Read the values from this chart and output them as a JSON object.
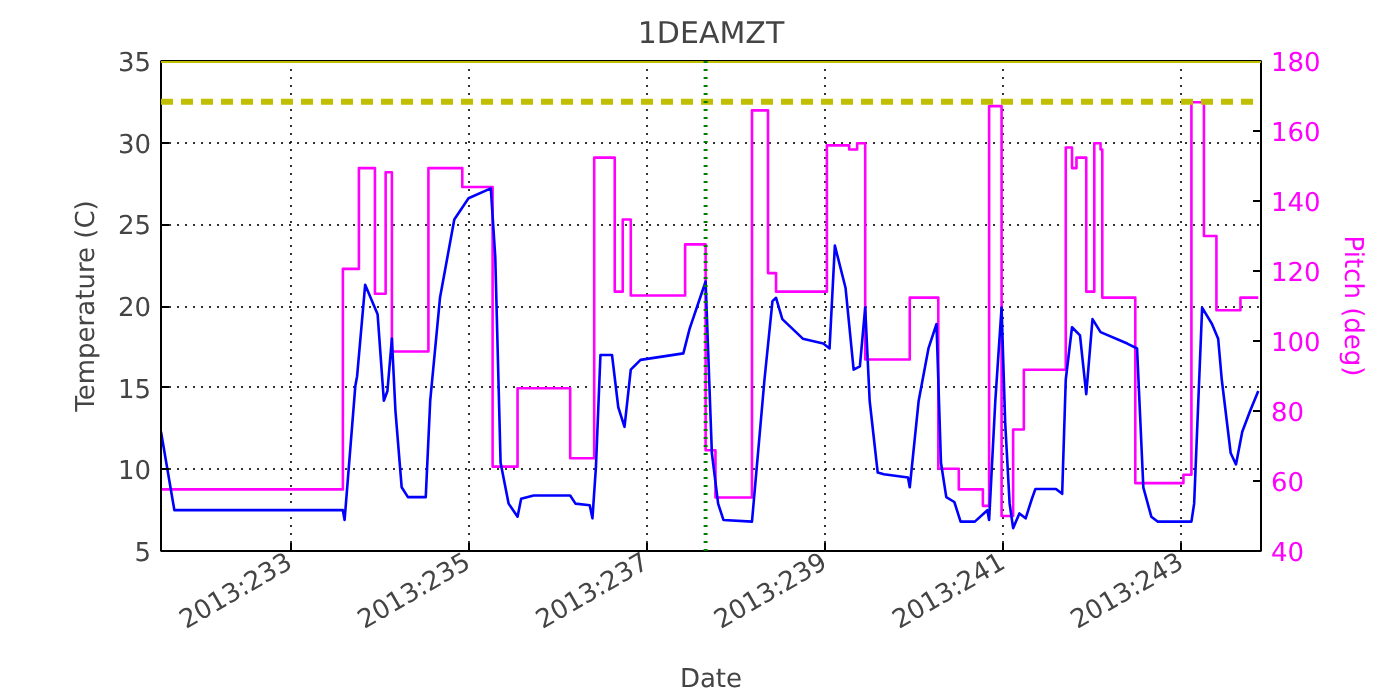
{
  "chart_data": {
    "type": "line",
    "title": "1DEAMZT",
    "xlabel": "Date",
    "ylabel": "Temperature (C)",
    "y2label": "Pitch (deg)",
    "xlim": [
      "2013-08-19T13:12",
      "2013-08-31T21:22"
    ],
    "ylim": [
      5,
      35
    ],
    "y2lim": [
      40,
      180
    ],
    "xticks": [
      {
        "value": "2013-08-21",
        "label": "2013:233"
      },
      {
        "value": "2013-08-23",
        "label": "2013:235"
      },
      {
        "value": "2013-08-25",
        "label": "2013:237"
      },
      {
        "value": "2013-08-27",
        "label": "2013:239"
      },
      {
        "value": "2013-08-29",
        "label": "2013:241"
      },
      {
        "value": "2013-08-31",
        "label": "2013:243"
      }
    ],
    "yticks": [
      5,
      10,
      15,
      20,
      25,
      30,
      35
    ],
    "y2ticks": [
      40,
      60,
      80,
      100,
      120,
      140,
      160,
      180
    ],
    "grid": true,
    "series": [
      {
        "color": "#0000ff",
        "x": [
          "2013-08-19T13:12",
          "2013-08-19T16:48",
          "2013-08-21T14:10",
          "2013-08-21T14:38",
          "2013-08-21T17:31",
          "2013-08-21T18:00",
          "2013-08-21T20:10",
          "2013-08-21T23:31",
          "2013-08-22T01:12",
          "2013-08-22T02:10",
          "2013-08-22T03:22",
          "2013-08-22T04:19",
          "2013-08-22T06:00",
          "2013-08-22T07:41",
          "2013-08-22T12:29",
          "2013-08-22T13:41",
          "2013-08-22T16:19",
          "2013-08-22T20:10",
          "2013-08-23T00:00",
          "2013-08-23T06:00",
          "2013-08-23T07:12",
          "2013-08-23T08:38",
          "2013-08-23T10:48",
          "2013-08-23T13:12",
          "2013-08-23T14:10",
          "2013-08-23T17:31",
          "2013-08-24T03:22",
          "2013-08-24T04:48",
          "2013-08-24T08:38",
          "2013-08-24T09:22",
          "2013-08-24T10:19",
          "2013-08-24T11:31",
          "2013-08-24T14:38",
          "2013-08-24T16:19",
          "2013-08-24T18:00",
          "2013-08-24T19:41",
          "2013-08-24T22:19",
          "2013-08-25T09:50",
          "2013-08-25T11:31",
          "2013-08-25T15:50",
          "2013-08-25T17:31",
          "2013-08-25T19:12",
          "2013-08-25T20:38",
          "2013-08-26T04:19",
          "2013-08-26T07:41",
          "2013-08-26T09:50",
          "2013-08-26T10:48",
          "2013-08-26T12:29",
          "2013-08-26T18:00",
          "2013-08-26T23:31",
          "2013-08-27T01:12",
          "2013-08-27T02:38",
          "2013-08-27T05:31",
          "2013-08-27T07:41",
          "2013-08-27T09:22",
          "2013-08-27T10:48",
          "2013-08-27T12:00",
          "2013-08-27T14:10",
          "2013-08-27T15:50",
          "2013-08-27T22:19",
          "2013-08-27T22:48",
          "2013-08-28T01:12",
          "2013-08-28T03:50",
          "2013-08-28T06:00",
          "2013-08-28T07:12",
          "2013-08-28T08:38",
          "2013-08-28T10:48",
          "2013-08-28T12:29",
          "2013-08-28T16:19",
          "2013-08-28T19:41",
          "2013-08-28T20:10",
          "2013-08-28T21:50",
          "2013-08-28T23:31",
          "2013-08-29T00:29",
          "2013-08-29T01:41",
          "2013-08-29T02:38",
          "2013-08-29T04:19",
          "2013-08-29T06:00",
          "2013-08-29T07:41",
          "2013-08-29T08:38",
          "2013-08-29T14:10",
          "2013-08-29T15:50",
          "2013-08-29T16:48",
          "2013-08-29T18:29",
          "2013-08-29T20:38",
          "2013-08-29T22:19",
          "2013-08-30T00:00",
          "2013-08-30T02:10",
          "2013-08-30T09:22",
          "2013-08-30T12:00",
          "2013-08-30T13:41",
          "2013-08-30T15:50",
          "2013-08-30T17:31",
          "2013-08-31T02:38",
          "2013-08-31T03:22",
          "2013-08-31T05:31",
          "2013-08-31T08:10",
          "2013-08-31T09:50",
          "2013-08-31T10:48",
          "2013-08-31T13:12",
          "2013-08-31T14:38",
          "2013-08-31T16:19",
          "2013-08-31T18:29",
          "2013-08-31T20:38"
        ],
        "values": [
          12.3,
          7.5,
          7.5,
          6.9,
          15.1,
          15.7,
          21.3,
          19.5,
          14.2,
          14.8,
          18.0,
          13.6,
          8.9,
          8.3,
          8.3,
          14.2,
          20.5,
          25.3,
          26.6,
          27.2,
          23.0,
          10.4,
          7.9,
          7.1,
          8.2,
          8.4,
          8.4,
          7.9,
          7.8,
          7.0,
          10.2,
          17.0,
          17.0,
          13.8,
          12.6,
          16.1,
          16.7,
          17.1,
          18.6,
          21.5,
          11.0,
          7.9,
          6.9,
          6.8,
          15.5,
          20.3,
          20.5,
          19.2,
          18.0,
          17.7,
          17.4,
          23.7,
          21.1,
          16.1,
          16.3,
          19.9,
          14.2,
          9.8,
          9.7,
          9.5,
          8.9,
          14.2,
          17.4,
          18.9,
          10.4,
          8.3,
          8.0,
          6.8,
          6.8,
          7.5,
          6.9,
          14.2,
          19.9,
          12.9,
          7.9,
          6.4,
          7.3,
          7.0,
          8.2,
          8.8,
          8.8,
          8.5,
          15.5,
          18.7,
          18.2,
          14.6,
          19.2,
          18.4,
          17.7,
          17.4,
          8.9,
          7.1,
          6.8,
          6.8,
          7.9,
          19.9,
          18.9,
          18.0,
          15.5,
          11.0,
          10.3,
          12.3,
          13.6,
          14.8
        ]
      },
      {
        "type": "step",
        "axis": "y2",
        "color": "#ff00ff",
        "x": [
          "2013-08-19T13:12",
          "2013-08-21T14:10",
          "2013-08-21T18:29",
          "2013-08-21T22:48",
          "2013-08-22T01:41",
          "2013-08-22T03:22",
          "2013-08-22T13:12",
          "2013-08-22T22:19",
          "2013-08-23T06:29",
          "2013-08-23T13:12",
          "2013-08-24T03:22",
          "2013-08-24T09:50",
          "2013-08-24T15:22",
          "2013-08-24T17:31",
          "2013-08-24T19:41",
          "2013-08-25T10:19",
          "2013-08-25T15:50",
          "2013-08-25T18:29",
          "2013-08-26T04:19",
          "2013-08-26T08:38",
          "2013-08-26T10:48",
          "2013-08-27T00:29",
          "2013-08-27T06:29",
          "2013-08-27T08:38",
          "2013-08-27T10:48",
          "2013-08-27T22:48",
          "2013-08-28T06:29",
          "2013-08-28T12:00",
          "2013-08-28T18:29",
          "2013-08-28T20:10",
          "2013-08-28T23:31",
          "2013-08-29T02:38",
          "2013-08-29T05:31",
          "2013-08-29T16:48",
          "2013-08-29T18:29",
          "2013-08-29T19:41",
          "2013-08-29T22:19",
          "2013-08-30T00:29",
          "2013-08-30T02:10",
          "2013-08-30T02:38",
          "2013-08-30T11:31",
          "2013-08-31T00:29",
          "2013-08-31T02:38",
          "2013-08-31T06:00",
          "2013-08-31T09:22",
          "2013-08-31T15:50",
          "2013-08-31T20:38"
        ],
        "values": [
          57.6,
          120.6,
          149.4,
          113.5,
          148.2,
          97,
          149.4,
          144,
          64.1,
          86.5,
          66.5,
          152.4,
          114.1,
          134.7,
          113,
          127.6,
          68.8,
          55.3,
          165.9,
          119.4,
          114.1,
          155.9,
          154.7,
          156.5,
          94.7,
          112.4,
          63.5,
          57.6,
          52.9,
          167.1,
          50,
          74.7,
          91.8,
          155.3,
          149.4,
          152.4,
          114.1,
          156.5,
          154.7,
          112.4,
          59.4,
          61.8,
          168.2,
          130,
          108.8,
          112.4,
          112.4
        ]
      }
    ],
    "ref_lines": [
      {
        "axis": "y",
        "value": 32.5,
        "color": "#bfbf00",
        "line_style": "dashed"
      },
      {
        "axis": "y",
        "value": 35,
        "color": "#bfbf00",
        "line_style": "solid"
      },
      {
        "axis": "x",
        "value": "2013-08-25T15:50",
        "color": "#008000",
        "line_style": "dotted"
      }
    ]
  }
}
